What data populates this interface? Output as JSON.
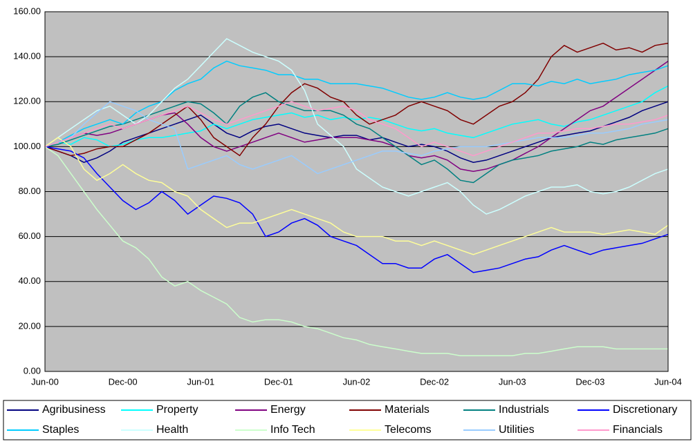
{
  "chart_data": {
    "type": "line",
    "categories": [
      "Jun-00",
      null,
      null,
      null,
      null,
      null,
      "Dec-00",
      null,
      null,
      null,
      null,
      null,
      "Jun-01",
      null,
      null,
      null,
      null,
      null,
      "Dec-01",
      null,
      null,
      null,
      null,
      null,
      "Jun-02",
      null,
      null,
      null,
      null,
      null,
      "Dec-02",
      null,
      null,
      null,
      null,
      null,
      "Jun-03",
      null,
      null,
      null,
      null,
      null,
      "Dec-03",
      null,
      null,
      null,
      null,
      null,
      "Jun-04"
    ],
    "ylim": [
      0,
      160
    ],
    "yticks": [
      {
        "value": 0,
        "label": "0.00"
      },
      {
        "value": 20,
        "label": "20.00"
      },
      {
        "value": 40,
        "label": "40.00"
      },
      {
        "value": 60,
        "label": "60.00"
      },
      {
        "value": 80,
        "label": "80.00"
      },
      {
        "value": 100,
        "label": "100.00"
      },
      {
        "value": 120,
        "label": "120.00"
      },
      {
        "value": 140,
        "label": "140.00"
      },
      {
        "value": 160,
        "label": "160.00"
      }
    ],
    "grid": true,
    "legend": "bottom",
    "series": [
      {
        "name": "Agribusiness",
        "color": "#000080",
        "values": [
          100,
          98,
          96,
          93,
          95,
          98,
          102,
          104,
          106,
          108,
          110,
          112,
          114,
          110,
          106,
          104,
          107,
          109,
          110,
          108,
          106,
          105,
          104,
          105,
          105,
          103,
          104,
          102,
          100,
          101,
          100,
          98,
          95,
          93,
          94,
          96,
          98,
          100,
          102,
          104,
          105,
          106,
          107,
          109,
          111,
          113,
          116,
          118,
          120
        ]
      },
      {
        "name": "Property",
        "color": "#00ffff",
        "values": [
          100,
          102,
          101,
          104,
          103,
          100,
          101,
          103,
          104,
          104,
          105,
          106,
          107,
          110,
          108,
          110,
          112,
          113,
          114,
          115,
          113,
          114,
          112,
          113,
          112,
          113,
          112,
          110,
          108,
          107,
          108,
          106,
          105,
          104,
          106,
          108,
          110,
          111,
          112,
          110,
          109,
          111,
          112,
          114,
          116,
          118,
          120,
          124,
          127
        ]
      },
      {
        "name": "Energy",
        "color": "#800080",
        "values": [
          100,
          102,
          104,
          106,
          105,
          106,
          108,
          110,
          112,
          114,
          115,
          110,
          104,
          100,
          98,
          100,
          102,
          104,
          106,
          104,
          102,
          103,
          104,
          104,
          104,
          103,
          102,
          100,
          96,
          95,
          96,
          94,
          90,
          89,
          90,
          92,
          94,
          97,
          100,
          104,
          108,
          112,
          116,
          118,
          122,
          126,
          130,
          134,
          138
        ]
      },
      {
        "name": "Materials",
        "color": "#800000",
        "values": [
          100,
          98,
          96,
          97,
          99,
          100,
          100,
          103,
          106,
          110,
          114,
          118,
          112,
          104,
          100,
          96,
          104,
          110,
          118,
          124,
          128,
          126,
          122,
          120,
          114,
          110,
          112,
          114,
          118,
          120,
          118,
          116,
          112,
          110,
          114,
          118,
          120,
          124,
          130,
          140,
          145,
          142,
          144,
          146,
          143,
          144,
          142,
          145,
          146
        ]
      },
      {
        "name": "Industrials",
        "color": "#008080",
        "values": [
          100,
          101,
          103,
          105,
          107,
          109,
          110,
          112,
          114,
          116,
          118,
          120,
          119,
          115,
          110,
          118,
          122,
          124,
          120,
          118,
          116,
          116,
          116,
          114,
          110,
          108,
          104,
          100,
          96,
          92,
          94,
          90,
          85,
          84,
          88,
          92,
          94,
          95,
          96,
          98,
          99,
          100,
          102,
          101,
          103,
          104,
          105,
          106,
          108
        ]
      },
      {
        "name": "Discretionary",
        "color": "#0000ff",
        "values": [
          100,
          99,
          98,
          95,
          88,
          82,
          76,
          72,
          75,
          80,
          76,
          70,
          74,
          78,
          77,
          75,
          70,
          60,
          62,
          66,
          68,
          65,
          60,
          58,
          56,
          52,
          48,
          48,
          46,
          46,
          50,
          52,
          48,
          44,
          45,
          46,
          48,
          50,
          51,
          54,
          56,
          54,
          52,
          54,
          55,
          56,
          57,
          59,
          61
        ]
      },
      {
        "name": "Staples",
        "color": "#00ccff",
        "values": [
          100,
          102,
          105,
          108,
          110,
          112,
          110,
          115,
          118,
          120,
          125,
          128,
          130,
          135,
          138,
          136,
          135,
          134,
          132,
          132,
          130,
          130,
          128,
          128,
          128,
          127,
          126,
          124,
          122,
          121,
          122,
          124,
          122,
          121,
          122,
          125,
          128,
          128,
          127,
          129,
          128,
          130,
          128,
          129,
          130,
          132,
          133,
          134,
          136
        ]
      },
      {
        "name": "Health",
        "color": "#ccffff",
        "values": [
          100,
          104,
          108,
          112,
          116,
          118,
          114,
          110,
          114,
          120,
          126,
          130,
          136,
          142,
          148,
          145,
          142,
          140,
          138,
          134,
          125,
          110,
          105,
          100,
          90,
          86,
          82,
          80,
          78,
          80,
          82,
          84,
          80,
          74,
          70,
          72,
          75,
          78,
          80,
          82,
          82,
          83,
          80,
          79,
          80,
          82,
          85,
          88,
          90
        ]
      },
      {
        "name": "Info Tech",
        "color": "#ccffcc",
        "values": [
          100,
          96,
          88,
          80,
          72,
          65,
          58,
          55,
          50,
          42,
          38,
          40,
          36,
          33,
          30,
          24,
          22,
          23,
          23,
          22,
          20,
          19,
          17,
          15,
          14,
          12,
          11,
          10,
          9,
          8,
          8,
          8,
          7,
          7,
          7,
          7,
          7,
          8,
          8,
          9,
          10,
          11,
          11,
          11,
          10,
          10,
          10,
          10,
          10
        ]
      },
      {
        "name": "Telecoms",
        "color": "#ffff99",
        "values": [
          100,
          104,
          100,
          90,
          85,
          88,
          92,
          88,
          85,
          84,
          80,
          78,
          72,
          68,
          64,
          66,
          66,
          68,
          70,
          72,
          70,
          68,
          66,
          62,
          60,
          60,
          60,
          58,
          58,
          56,
          58,
          56,
          54,
          52,
          54,
          56,
          58,
          60,
          62,
          64,
          62,
          62,
          62,
          61,
          62,
          63,
          62,
          61,
          65
        ]
      },
      {
        "name": "Utilities",
        "color": "#99ccff",
        "values": [
          100,
          102,
          104,
          110,
          115,
          120,
          118,
          116,
          112,
          110,
          108,
          90,
          92,
          94,
          96,
          92,
          90,
          92,
          94,
          96,
          92,
          88,
          90,
          92,
          94,
          96,
          98,
          98,
          97,
          96,
          98,
          99,
          100,
          100,
          100,
          101,
          102,
          103,
          104,
          104,
          104,
          105,
          106,
          106,
          107,
          108,
          110,
          111,
          112
        ]
      },
      {
        "name": "Financials",
        "color": "#ff99cc",
        "values": [
          100,
          102,
          104,
          106,
          108,
          110,
          108,
          110,
          112,
          114,
          116,
          118,
          115,
          112,
          110,
          112,
          114,
          116,
          118,
          120,
          118,
          116,
          117,
          118,
          116,
          112,
          110,
          108,
          104,
          100,
          102,
          100,
          98,
          96,
          98,
          100,
          102,
          104,
          106,
          106,
          107,
          108,
          108,
          109,
          110,
          110,
          111,
          112,
          114
        ]
      }
    ]
  }
}
